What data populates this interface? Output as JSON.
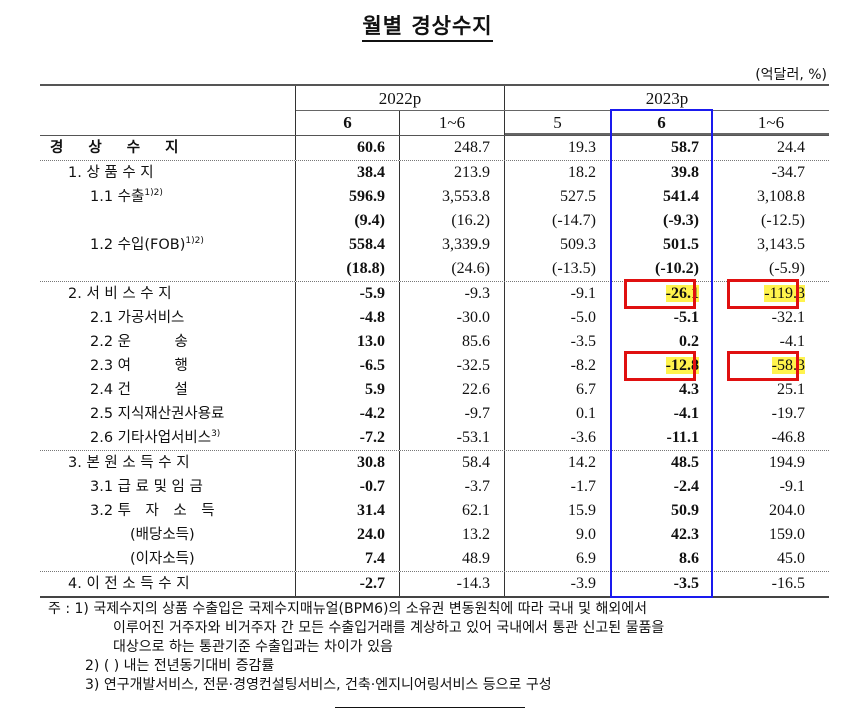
{
  "title": "월별 경상수지",
  "unit": "(억달러, %)",
  "header": {
    "years": [
      "2022p",
      "2023p"
    ],
    "columns": [
      "6",
      "1~6",
      "5",
      "6",
      "1~6"
    ]
  },
  "highlight_colors": {
    "column_box": "#1a1aee",
    "cell_box": "#e01010",
    "marker": "#fff34d"
  },
  "rows": [
    {
      "label": "경 상 수 지",
      "sup": "",
      "bold_label": true,
      "values": [
        "60.6",
        "248.7",
        "19.3",
        "58.7",
        "24.4"
      ]
    },
    {
      "label": "1. 상 품 수 지",
      "sup": "",
      "values": [
        "38.4",
        "213.9",
        "18.2",
        "39.8",
        "-34.7"
      ]
    },
    {
      "label": "1.1 수출",
      "sup": "1)2)",
      "values": [
        "596.9",
        "3,553.8",
        "527.5",
        "541.4",
        "3,108.8"
      ]
    },
    {
      "label": "",
      "sup": "",
      "values": [
        "(9.4)",
        "(16.2)",
        "(-14.7)",
        "(-9.3)",
        "(-12.5)"
      ]
    },
    {
      "label": "1.2 수입(FOB)",
      "sup": "1)2)",
      "values": [
        "558.4",
        "3,339.9",
        "509.3",
        "501.5",
        "3,143.5"
      ]
    },
    {
      "label": "",
      "sup": "",
      "values": [
        "(18.8)",
        "(24.6)",
        "(-13.5)",
        "(-10.2)",
        "(-5.9)"
      ]
    },
    {
      "label": "2. 서 비 스 수 지",
      "sup": "",
      "values": [
        "-5.9",
        "-9.3",
        "-9.1",
        "-26.1",
        "-119.3"
      ],
      "highlighted": [
        3,
        4
      ]
    },
    {
      "label": "2.1 가공서비스",
      "sup": "",
      "values": [
        "-4.8",
        "-30.0",
        "-5.0",
        "-5.1",
        "-32.1"
      ]
    },
    {
      "label": "2.2 운　　　송",
      "sup": "",
      "values": [
        "13.0",
        "85.6",
        "-3.5",
        "0.2",
        "-4.1"
      ]
    },
    {
      "label": "2.3 여　　　행",
      "sup": "",
      "values": [
        "-6.5",
        "-32.5",
        "-8.2",
        "-12.8",
        "-58.3"
      ],
      "highlighted": [
        3,
        4
      ]
    },
    {
      "label": "2.4 건　　　설",
      "sup": "",
      "values": [
        "5.9",
        "22.6",
        "6.7",
        "4.3",
        "25.1"
      ]
    },
    {
      "label": "2.5 지식재산권사용료",
      "sup": "",
      "values": [
        "-4.2",
        "-9.7",
        "0.1",
        "-4.1",
        "-19.7"
      ]
    },
    {
      "label": "2.6 기타사업서비스",
      "sup": "3)",
      "values": [
        "-7.2",
        "-53.1",
        "-3.6",
        "-11.1",
        "-46.8"
      ]
    },
    {
      "label": "3. 본 원 소 득 수 지",
      "sup": "",
      "values": [
        "30.8",
        "58.4",
        "14.2",
        "48.5",
        "194.9"
      ]
    },
    {
      "label": "3.1 급 료 및 임 금",
      "sup": "",
      "values": [
        "-0.7",
        "-3.7",
        "-1.7",
        "-2.4",
        "-9.1"
      ]
    },
    {
      "label": "3.2 투　자　소　득",
      "sup": "",
      "values": [
        "31.4",
        "62.1",
        "15.9",
        "50.9",
        "204.0"
      ]
    },
    {
      "label": "(배당소득)",
      "sup": "",
      "values": [
        "24.0",
        "13.2",
        "9.0",
        "42.3",
        "159.0"
      ]
    },
    {
      "label": "(이자소득)",
      "sup": "",
      "values": [
        "7.4",
        "48.9",
        "6.9",
        "8.6",
        "45.0"
      ]
    },
    {
      "label": "4. 이 전 소 득 수 지",
      "sup": "",
      "values": [
        "-2.7",
        "-14.3",
        "-3.9",
        "-3.5",
        "-16.5"
      ]
    }
  ],
  "notes": [
    "주 : 1) 국제수지의 상품 수출입은 국제수지매뉴얼(BPM6)의 소유권 변동원칙에 따라 국내 및 해외에서",
    "이루어진 거주자와 비거주자 간 모든 수출입거래를 계상하고 있어 국내에서 통관 신고된 물품을",
    "대상으로 하는 통관기준 수출입과는 차이가 있음",
    "2) (   ) 내는 전년동기대비 증감률",
    "3) 연구개발서비스, 전문·경영컨설팅서비스, 건축·엔지니어링서비스 등으로 구성"
  ]
}
